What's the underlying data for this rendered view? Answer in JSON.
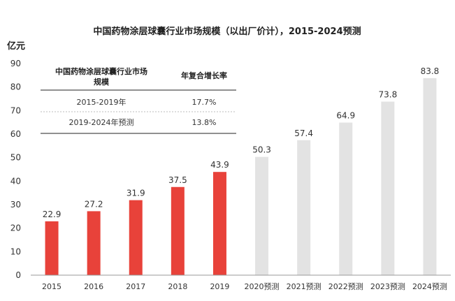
{
  "chart_data": {
    "type": "bar",
    "title": "中国药物涂层球囊行业市场规模（以出厂价计），2015-2024预测",
    "unit_label": "亿元",
    "categories": [
      "2015",
      "2016",
      "2017",
      "2018",
      "2019",
      "2020预测",
      "2021预测",
      "2022预测",
      "2023预测",
      "2024预测"
    ],
    "values": [
      22.9,
      27.2,
      31.9,
      37.5,
      43.9,
      50.3,
      57.4,
      64.9,
      73.8,
      83.8
    ],
    "value_labels": [
      "22.9",
      "27.2",
      "31.9",
      "37.5",
      "43.9",
      "50.3",
      "57.4",
      "64.9",
      "73.8",
      "83.8"
    ],
    "y_ticks": [
      "0",
      "10",
      "20",
      "30",
      "40",
      "50",
      "60",
      "70",
      "80",
      "90"
    ],
    "ylim": [
      0,
      90
    ],
    "grid": false,
    "colors": {
      "actual": "#e8423a",
      "forecast": "#e3e3e3",
      "axis": "#999999"
    },
    "bar_kinds": [
      "actual",
      "actual",
      "actual",
      "actual",
      "actual",
      "forecast",
      "forecast",
      "forecast",
      "forecast",
      "forecast"
    ]
  },
  "cagr_table": {
    "header": [
      "中国药物涂层球囊行业市场规模",
      "年复合增长率"
    ],
    "header_col1_lines": [
      "中国药物涂层球囊行业市场",
      "规模"
    ],
    "rows": [
      {
        "period": "2015-2019年",
        "rate": "17.7%"
      },
      {
        "period": "2019-2024年预测",
        "rate": "13.8%"
      }
    ]
  }
}
